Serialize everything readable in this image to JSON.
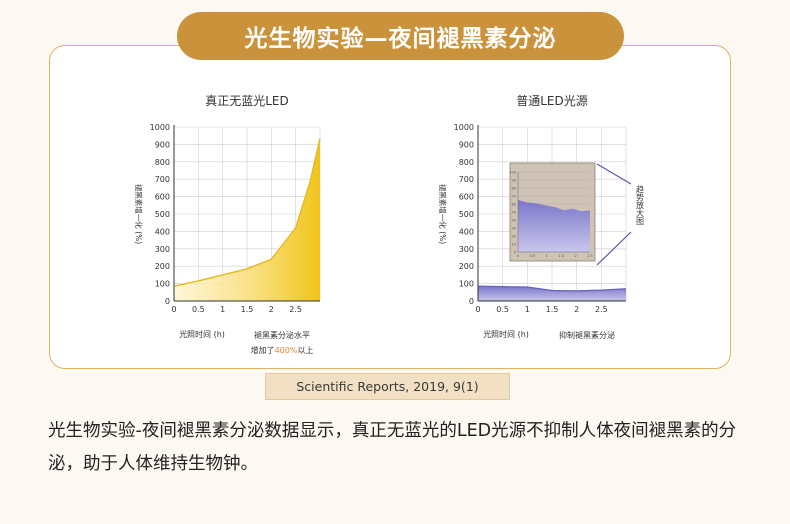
{
  "banner": {
    "title": "光生物实验—夜间褪黑素分泌"
  },
  "source": "Scientific Reports, 2019, 9(1)",
  "caption": "光生物实验-夜间褪黑素分泌数据显示，真正无蓝光的LED光源不抑制人体夜间褪黑素的分泌，助于人体维持生物钟。",
  "colors": {
    "banner": "#c9923b",
    "gold": "#f0c419",
    "purple": "#7b76c9",
    "inset_bg": "#cfc3b6"
  },
  "chart_data": [
    {
      "type": "area",
      "title": "真正无蓝光LED",
      "ylabel": "褪黑素增一化 (%)",
      "xlabel": "光照时间 (h)",
      "x_ticks": [
        "0",
        "0.5",
        "1",
        "1.5",
        "2",
        "2.5"
      ],
      "y_ticks": [
        "0",
        "100",
        "200",
        "300",
        "400",
        "500",
        "600",
        "700",
        "800",
        "900",
        "1000"
      ],
      "xlim": [
        0,
        3
      ],
      "ylim": [
        0,
        1000
      ],
      "grid": true,
      "x": [
        0,
        0.5,
        1,
        1.5,
        2,
        2.5,
        2.8,
        3
      ],
      "values": [
        85,
        115,
        150,
        185,
        240,
        420,
        690,
        935
      ],
      "annotation": {
        "line1": "褪黑素分泌水平",
        "line2_prefix": "增加了",
        "line2_highlight": "400%",
        "line2_suffix": "以上"
      }
    },
    {
      "type": "area",
      "title": "普通LED光源",
      "ylabel": "褪黑素增一化 (%)",
      "xlabel": "光照时间 (h)",
      "x_ticks": [
        "0",
        "0.5",
        "1",
        "1.5",
        "2",
        "2.5"
      ],
      "y_ticks": [
        "0",
        "100",
        "200",
        "300",
        "400",
        "500",
        "600",
        "700",
        "800",
        "900",
        "1000"
      ],
      "xlim": [
        0,
        3
      ],
      "ylim": [
        0,
        1000
      ],
      "grid": true,
      "x": [
        0,
        0.5,
        1,
        1.5,
        2,
        2.5,
        3
      ],
      "values": [
        85,
        82,
        80,
        60,
        58,
        62,
        70
      ],
      "annotation": {
        "label": "抑制褪黑素分泌"
      },
      "inset": {
        "label": "趋势放大图",
        "x": [
          0,
          0.3,
          0.6,
          1.0,
          1.3,
          1.6,
          1.9,
          2.2,
          2.5
        ],
        "values": [
          65,
          62,
          61,
          58,
          56,
          52,
          54,
          51,
          52
        ]
      }
    }
  ]
}
